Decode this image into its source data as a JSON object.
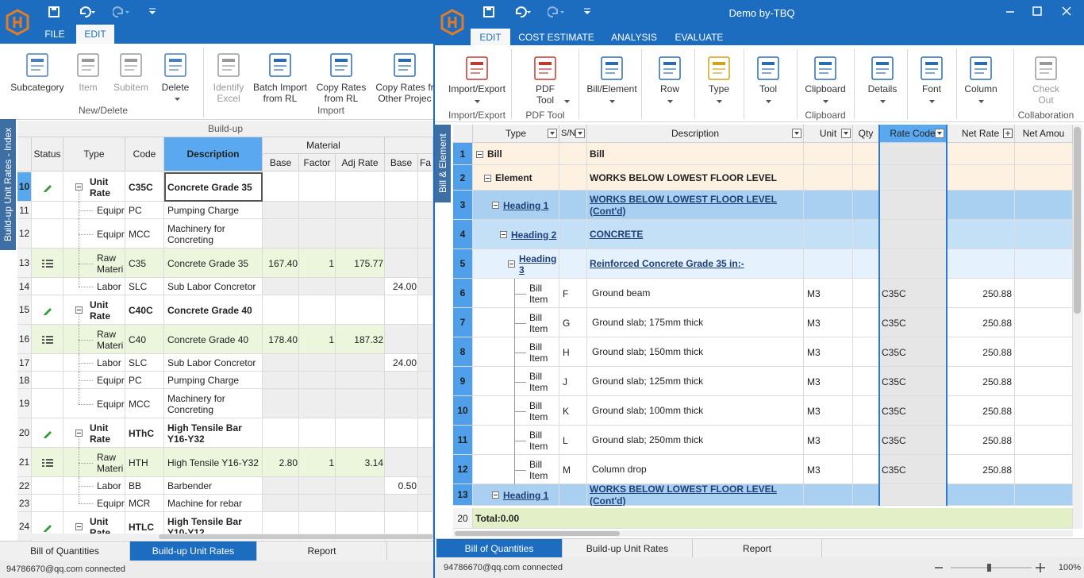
{
  "left": {
    "tabs": [
      "FILE",
      "EDIT"
    ],
    "ribbon": [
      {
        "label": "New/Delete",
        "buttons": [
          "Subcategory",
          "Item",
          "Subitem",
          "Delete"
        ]
      },
      {
        "label": "Import",
        "buttons": [
          "Identify Excel",
          "Batch Import from RL",
          "Copy Rates from RL",
          "Copy Rates fr Other Projec"
        ]
      }
    ],
    "side_tab": "Build-up Unit Rates - Index",
    "grid": {
      "caption": "Build-up",
      "columns": [
        "Status",
        "Type",
        "Code",
        "Description"
      ],
      "group": "Material",
      "subcolumns": [
        "Base",
        "Factor",
        "Adj Rate",
        "Base",
        "Fa"
      ],
      "unit_rates": [
        {
          "no": 10,
          "type": "Unit Rate",
          "code": "C35C",
          "description": "Concrete Grade 35",
          "items": [
            {
              "no": 11,
              "type": "Equipr",
              "code": "PC",
              "description": "Pumping Charge"
            },
            {
              "no": 12,
              "type": "Equipr",
              "code": "MCC",
              "description": "Machinery for Concreting"
            },
            {
              "no": 13,
              "type": "Raw Materi",
              "code": "C35",
              "description": "Concrete Grade 35",
              "base": "167.40",
              "factor": "1",
              "adj_rate": "175.77"
            },
            {
              "no": 14,
              "type": "Labor",
              "code": "SLC",
              "description": "Sub Labor Concretor",
              "labor_base": "24.00"
            }
          ]
        },
        {
          "no": 15,
          "type": "Unit Rate",
          "code": "C40C",
          "description": "Concrete Grade 40",
          "items": [
            {
              "no": 16,
              "type": "Raw Materi",
              "code": "C40",
              "description": "Concrete Grade 40",
              "base": "178.40",
              "factor": "1",
              "adj_rate": "187.32"
            },
            {
              "no": 17,
              "type": "Labor",
              "code": "SLC",
              "description": "Sub Labor Concretor",
              "labor_base": "24.00"
            },
            {
              "no": 18,
              "type": "Equipr",
              "code": "PC",
              "description": "Pumping Charge"
            },
            {
              "no": 19,
              "type": "Equipr",
              "code": "MCC",
              "description": "Machinery for Concreting"
            }
          ]
        },
        {
          "no": 20,
          "type": "Unit Rate",
          "code": "HThC",
          "description": "High Tensile Bar Y16-Y32",
          "items": [
            {
              "no": 21,
              "type": "Raw Materi",
              "code": "HTH",
              "description": "High Tensile Y16-Y32",
              "base": "2.80",
              "factor": "1",
              "adj_rate": "3.14"
            },
            {
              "no": 22,
              "type": "Labor",
              "code": "BB",
              "description": "Barbender",
              "labor_base": "0.50"
            },
            {
              "no": 23,
              "type": "Equipr",
              "code": "MCR",
              "description": "Machine for rebar"
            }
          ]
        },
        {
          "no": 24,
          "type": "Unit Rate",
          "code": "HTLC",
          "description": "High Tensile Bar Y10-Y12",
          "items": []
        }
      ]
    },
    "bottom_tabs": [
      "Bill of Quantities",
      "Build-up Unit Rates",
      "Report"
    ],
    "status": "94786670@qq.com connected"
  },
  "right": {
    "title": "Demo by-TBQ",
    "tabs": [
      "EDIT",
      "COST ESTIMATE",
      "ANALYSIS",
      "EVALUATE"
    ],
    "ribbon": [
      {
        "label": "Import/Export",
        "buttons": [
          "Import/Export"
        ]
      },
      {
        "label": "PDF Tool",
        "buttons": [
          "PDF Tool"
        ]
      },
      {
        "buttons": [
          "Bill/Element",
          "Row",
          "Type",
          "Tool"
        ]
      },
      {
        "label": "Clipboard",
        "buttons": [
          "Clipboard"
        ]
      },
      {
        "buttons": [
          "Details",
          "Font",
          "Column"
        ]
      },
      {
        "label": "Collaboration",
        "buttons": [
          "Check Out"
        ]
      }
    ],
    "side_tab": "Bill & Element",
    "grid": {
      "columns": {
        "type": "Type",
        "sn": "S/N",
        "description": "Description",
        "unit": "Unit",
        "qty": "Qty",
        "rate_code": "Rate Code",
        "net_rate": "Net Rate",
        "net_amount": "Net Amou"
      },
      "rows": [
        {
          "no": 1,
          "type": "Bill",
          "description": "Bill",
          "children": [
            {
              "no": 2,
              "type": "Element",
              "description": "WORKS BELOW LOWEST FLOOR LEVEL",
              "children": [
                {
                  "no": 3,
                  "type": "Heading 1",
                  "description": "WORKS BELOW LOWEST FLOOR LEVEL (Cont'd)",
                  "children": [
                    {
                      "no": 4,
                      "type": "Heading 2",
                      "description": "CONCRETE",
                      "children": [
                        {
                          "no": 5,
                          "type": "Heading 3",
                          "description": "Reinforced Concrete Grade 35 in:-",
                          "children": [
                            {
                              "no": 6,
                              "type": "Bill Item",
                              "sn": "F",
                              "description": "Ground beam",
                              "unit": "M3",
                              "rate_code": "C35C",
                              "net_rate": "250.88"
                            },
                            {
                              "no": 7,
                              "type": "Bill Item",
                              "sn": "G",
                              "description": "Ground slab; 175mm thick",
                              "unit": "M3",
                              "rate_code": "C35C",
                              "net_rate": "250.88"
                            },
                            {
                              "no": 8,
                              "type": "Bill Item",
                              "sn": "H",
                              "description": "Ground slab; 150mm thick",
                              "unit": "M3",
                              "rate_code": "C35C",
                              "net_rate": "250.88"
                            },
                            {
                              "no": 9,
                              "type": "Bill Item",
                              "sn": "J",
                              "description": "Ground slab; 125mm thick",
                              "unit": "M3",
                              "rate_code": "C35C",
                              "net_rate": "250.88"
                            },
                            {
                              "no": 10,
                              "type": "Bill Item",
                              "sn": "K",
                              "description": "Ground slab; 100mm thick",
                              "unit": "M3",
                              "rate_code": "C35C",
                              "net_rate": "250.88"
                            },
                            {
                              "no": 11,
                              "type": "Bill Item",
                              "sn": "L",
                              "description": "Ground slab; 250mm thick",
                              "unit": "M3",
                              "rate_code": "C35C",
                              "net_rate": "250.88"
                            },
                            {
                              "no": 12,
                              "type": "Bill Item",
                              "sn": "M",
                              "description": "Column drop",
                              "unit": "M3",
                              "rate_code": "C35C",
                              "net_rate": "250.88"
                            }
                          ]
                        }
                      ]
                    }
                  ]
                },
                {
                  "no": 13,
                  "type": "Heading 1",
                  "description": "WORKS BELOW LOWEST FLOOR LEVEL (Cont'd)"
                }
              ]
            }
          ]
        }
      ],
      "total": {
        "no": 20,
        "label": "Total:0.00"
      }
    },
    "bottom_tabs": [
      "Bill of Quantities",
      "Build-up Unit Rates",
      "Report"
    ],
    "status": "94786670@qq.com connected",
    "zoom": "100%"
  }
}
